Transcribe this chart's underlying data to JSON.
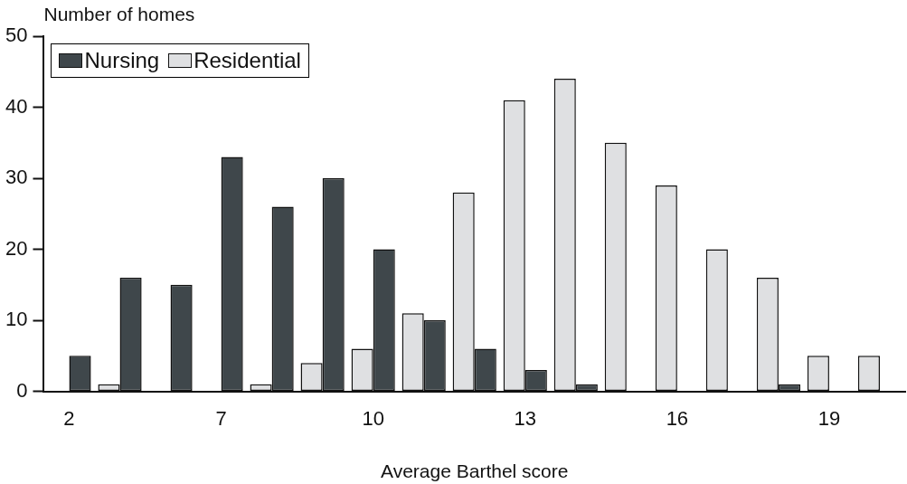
{
  "chart_data": {
    "type": "bar",
    "xlabel": "Average Barthel score",
    "ylabel": "Number of homes",
    "categories": [
      "2",
      null,
      null,
      "7",
      null,
      null,
      "10",
      null,
      null,
      "13",
      null,
      null,
      "16",
      null,
      null,
      "19",
      null
    ],
    "series": [
      {
        "name": "Residential",
        "color": "#dfe0e2",
        "values": [
          0,
          1,
          0,
          0,
          1,
          4,
          6,
          11,
          28,
          41,
          44,
          35,
          29,
          20,
          16,
          5,
          5
        ]
      },
      {
        "name": "Nursing",
        "color": "#3f474b",
        "values": [
          5,
          16,
          15,
          33,
          26,
          30,
          20,
          10,
          6,
          3,
          1,
          0,
          0,
          0,
          1,
          0,
          0
        ]
      }
    ],
    "ylim": [
      0,
      50
    ],
    "yticks": [
      0,
      10,
      20,
      30,
      40,
      50
    ],
    "grid": false,
    "legend": "top left"
  }
}
